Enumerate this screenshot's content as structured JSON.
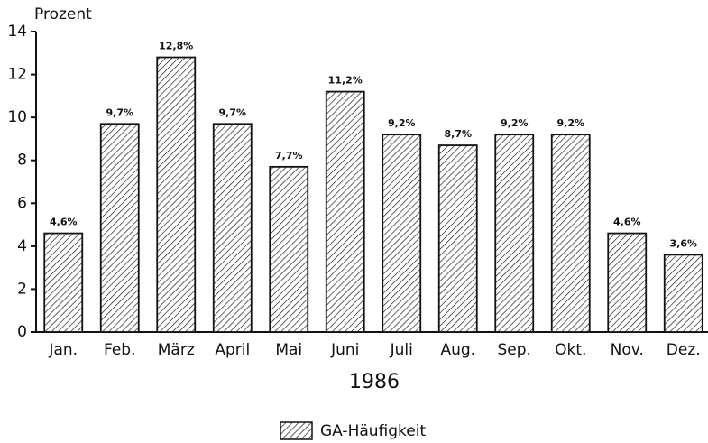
{
  "chart_data": {
    "type": "bar",
    "ylabel": "Prozent",
    "xlabel": "1986",
    "categories": [
      "Jan.",
      "Feb.",
      "März",
      "April",
      "Mai",
      "Juni",
      "Juli",
      "Aug.",
      "Sep.",
      "Okt.",
      "Nov.",
      "Dez."
    ],
    "series": [
      {
        "name": "GA-Häufigkeit",
        "color": "#111111",
        "values": [
          4.6,
          9.7,
          12.8,
          9.7,
          7.7,
          11.2,
          9.2,
          8.7,
          9.2,
          9.2,
          4.6,
          3.6
        ],
        "value_labels": [
          "4,6%",
          "9,7%",
          "12,8%",
          "9,7%",
          "7,7%",
          "11,2%",
          "9,2%",
          "8,7%",
          "9,2%",
          "9,2%",
          "4,6%",
          "3,6%"
        ]
      }
    ],
    "ylim": [
      0,
      14
    ],
    "yticks": [
      0,
      2,
      4,
      6,
      8,
      10,
      12,
      14
    ]
  }
}
